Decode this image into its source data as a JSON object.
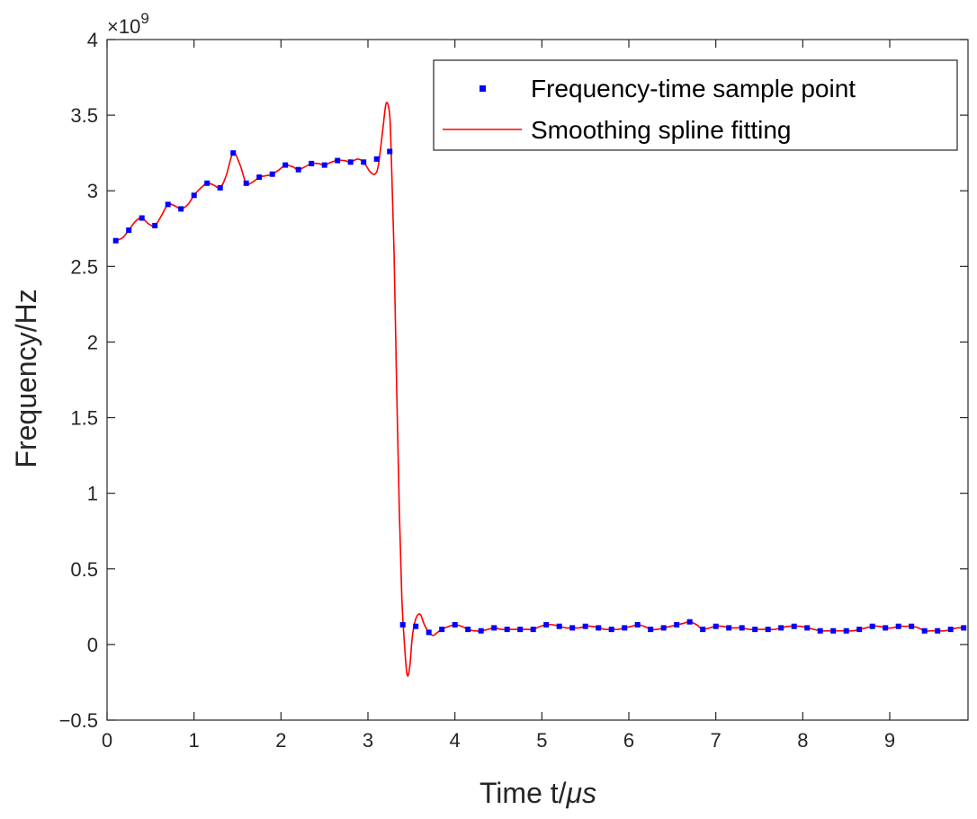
{
  "chart_data": {
    "type": "line",
    "xlabel": "Time t/",
    "xlabel_unit": "μs",
    "ylabel": "Frequency/Hz",
    "y_exponent_prefix": "×10",
    "y_exponent_power": "9",
    "xlim": [
      0,
      9.9
    ],
    "ylim": [
      -0.5,
      4
    ],
    "xticks": [
      0,
      1,
      2,
      3,
      4,
      5,
      6,
      7,
      8,
      9
    ],
    "xtick_labels": [
      "0",
      "1",
      "2",
      "3",
      "4",
      "5",
      "6",
      "7",
      "8",
      "9"
    ],
    "yticks": [
      -0.5,
      0,
      0.5,
      1,
      1.5,
      2,
      2.5,
      3,
      3.5,
      4
    ],
    "ytick_labels": [
      "−0.5",
      "0",
      "0.5",
      "1",
      "1.5",
      "2",
      "2.5",
      "3",
      "3.5",
      "4"
    ],
    "grid": false,
    "legend_position": "top-right",
    "colors": {
      "samples": "#0000ff",
      "fit": "#ff0000",
      "axes": "#262626"
    },
    "series": [
      {
        "name": "Frequency-time sample point",
        "style": "markers",
        "points": [
          [
            0.1,
            2.67
          ],
          [
            0.25,
            2.74
          ],
          [
            0.4,
            2.82
          ],
          [
            0.55,
            2.77
          ],
          [
            0.7,
            2.91
          ],
          [
            0.85,
            2.88
          ],
          [
            1.0,
            2.97
          ],
          [
            1.15,
            3.05
          ],
          [
            1.3,
            3.02
          ],
          [
            1.45,
            3.25
          ],
          [
            1.6,
            3.05
          ],
          [
            1.75,
            3.09
          ],
          [
            1.9,
            3.11
          ],
          [
            2.05,
            3.17
          ],
          [
            2.2,
            3.14
          ],
          [
            2.35,
            3.18
          ],
          [
            2.5,
            3.17
          ],
          [
            2.65,
            3.2
          ],
          [
            2.8,
            3.19
          ],
          [
            2.95,
            3.19
          ],
          [
            3.1,
            3.21
          ],
          [
            3.25,
            3.26
          ],
          [
            3.4,
            0.13
          ],
          [
            3.55,
            0.12
          ],
          [
            3.7,
            0.08
          ],
          [
            3.85,
            0.1
          ],
          [
            4.0,
            0.13
          ],
          [
            4.15,
            0.1
          ],
          [
            4.3,
            0.09
          ],
          [
            4.45,
            0.11
          ],
          [
            4.6,
            0.1
          ],
          [
            4.75,
            0.1
          ],
          [
            4.9,
            0.1
          ],
          [
            5.05,
            0.13
          ],
          [
            5.2,
            0.12
          ],
          [
            5.35,
            0.11
          ],
          [
            5.5,
            0.12
          ],
          [
            5.65,
            0.11
          ],
          [
            5.8,
            0.1
          ],
          [
            5.95,
            0.11
          ],
          [
            6.1,
            0.13
          ],
          [
            6.25,
            0.1
          ],
          [
            6.4,
            0.11
          ],
          [
            6.55,
            0.13
          ],
          [
            6.7,
            0.15
          ],
          [
            6.85,
            0.1
          ],
          [
            7.0,
            0.12
          ],
          [
            7.15,
            0.11
          ],
          [
            7.3,
            0.11
          ],
          [
            7.45,
            0.1
          ],
          [
            7.6,
            0.1
          ],
          [
            7.75,
            0.11
          ],
          [
            7.9,
            0.12
          ],
          [
            8.05,
            0.11
          ],
          [
            8.2,
            0.09
          ],
          [
            8.35,
            0.09
          ],
          [
            8.5,
            0.09
          ],
          [
            8.65,
            0.1
          ],
          [
            8.8,
            0.12
          ],
          [
            8.95,
            0.11
          ],
          [
            9.1,
            0.12
          ],
          [
            9.25,
            0.12
          ],
          [
            9.4,
            0.09
          ],
          [
            9.55,
            0.09
          ],
          [
            9.7,
            0.1
          ],
          [
            9.85,
            0.11
          ]
        ]
      },
      {
        "name": "Smoothing spline fitting",
        "style": "line",
        "points": [
          [
            0.1,
            2.67
          ],
          [
            0.18,
            2.69
          ],
          [
            0.25,
            2.74
          ],
          [
            0.33,
            2.8
          ],
          [
            0.4,
            2.82
          ],
          [
            0.48,
            2.78
          ],
          [
            0.55,
            2.77
          ],
          [
            0.63,
            2.84
          ],
          [
            0.7,
            2.91
          ],
          [
            0.78,
            2.9
          ],
          [
            0.85,
            2.88
          ],
          [
            0.93,
            2.91
          ],
          [
            1.0,
            2.97
          ],
          [
            1.08,
            3.02
          ],
          [
            1.15,
            3.05
          ],
          [
            1.22,
            3.04
          ],
          [
            1.3,
            3.02
          ],
          [
            1.37,
            3.1
          ],
          [
            1.45,
            3.25
          ],
          [
            1.53,
            3.17
          ],
          [
            1.6,
            3.05
          ],
          [
            1.68,
            3.06
          ],
          [
            1.75,
            3.09
          ],
          [
            1.83,
            3.1
          ],
          [
            1.9,
            3.11
          ],
          [
            1.98,
            3.14
          ],
          [
            2.05,
            3.17
          ],
          [
            2.13,
            3.16
          ],
          [
            2.2,
            3.14
          ],
          [
            2.28,
            3.16
          ],
          [
            2.35,
            3.18
          ],
          [
            2.43,
            3.18
          ],
          [
            2.5,
            3.17
          ],
          [
            2.58,
            3.19
          ],
          [
            2.65,
            3.2
          ],
          [
            2.73,
            3.2
          ],
          [
            2.8,
            3.19
          ],
          [
            2.88,
            3.21
          ],
          [
            2.95,
            3.19
          ],
          [
            3.02,
            3.13
          ],
          [
            3.08,
            3.11
          ],
          [
            3.12,
            3.17
          ],
          [
            3.17,
            3.4
          ],
          [
            3.21,
            3.58
          ],
          [
            3.25,
            3.5
          ],
          [
            3.27,
            3.2
          ],
          [
            3.3,
            2.6
          ],
          [
            3.33,
            1.7
          ],
          [
            3.36,
            0.9
          ],
          [
            3.39,
            0.3
          ],
          [
            3.42,
            0.0
          ],
          [
            3.45,
            -0.2
          ],
          [
            3.48,
            -0.15
          ],
          [
            3.51,
            0.05
          ],
          [
            3.55,
            0.17
          ],
          [
            3.6,
            0.2
          ],
          [
            3.65,
            0.13
          ],
          [
            3.7,
            0.08
          ],
          [
            3.75,
            0.06
          ],
          [
            3.8,
            0.08
          ],
          [
            3.85,
            0.1
          ],
          [
            3.93,
            0.12
          ],
          [
            4.0,
            0.13
          ],
          [
            4.08,
            0.12
          ],
          [
            4.15,
            0.1
          ],
          [
            4.22,
            0.09
          ],
          [
            4.3,
            0.09
          ],
          [
            4.38,
            0.1
          ],
          [
            4.45,
            0.11
          ],
          [
            4.53,
            0.1
          ],
          [
            4.6,
            0.1
          ],
          [
            4.68,
            0.1
          ],
          [
            4.75,
            0.1
          ],
          [
            4.83,
            0.1
          ],
          [
            4.9,
            0.1
          ],
          [
            4.98,
            0.12
          ],
          [
            5.05,
            0.13
          ],
          [
            5.13,
            0.13
          ],
          [
            5.2,
            0.12
          ],
          [
            5.28,
            0.11
          ],
          [
            5.35,
            0.11
          ],
          [
            5.43,
            0.11
          ],
          [
            5.5,
            0.12
          ],
          [
            5.58,
            0.12
          ],
          [
            5.65,
            0.11
          ],
          [
            5.73,
            0.1
          ],
          [
            5.8,
            0.1
          ],
          [
            5.88,
            0.1
          ],
          [
            5.95,
            0.11
          ],
          [
            6.03,
            0.12
          ],
          [
            6.1,
            0.13
          ],
          [
            6.18,
            0.12
          ],
          [
            6.25,
            0.1
          ],
          [
            6.33,
            0.1
          ],
          [
            6.4,
            0.11
          ],
          [
            6.48,
            0.12
          ],
          [
            6.55,
            0.13
          ],
          [
            6.63,
            0.14
          ],
          [
            6.7,
            0.15
          ],
          [
            6.78,
            0.13
          ],
          [
            6.85,
            0.1
          ],
          [
            6.93,
            0.11
          ],
          [
            7.0,
            0.12
          ],
          [
            7.08,
            0.12
          ],
          [
            7.15,
            0.11
          ],
          [
            7.23,
            0.11
          ],
          [
            7.3,
            0.11
          ],
          [
            7.38,
            0.1
          ],
          [
            7.45,
            0.1
          ],
          [
            7.53,
            0.1
          ],
          [
            7.6,
            0.1
          ],
          [
            7.68,
            0.1
          ],
          [
            7.75,
            0.11
          ],
          [
            7.83,
            0.12
          ],
          [
            7.9,
            0.12
          ],
          [
            7.98,
            0.12
          ],
          [
            8.05,
            0.11
          ],
          [
            8.13,
            0.1
          ],
          [
            8.2,
            0.09
          ],
          [
            8.28,
            0.09
          ],
          [
            8.35,
            0.09
          ],
          [
            8.43,
            0.09
          ],
          [
            8.5,
            0.09
          ],
          [
            8.58,
            0.09
          ],
          [
            8.65,
            0.1
          ],
          [
            8.73,
            0.11
          ],
          [
            8.8,
            0.12
          ],
          [
            8.88,
            0.12
          ],
          [
            8.95,
            0.11
          ],
          [
            9.03,
            0.11
          ],
          [
            9.1,
            0.12
          ],
          [
            9.18,
            0.12
          ],
          [
            9.25,
            0.12
          ],
          [
            9.33,
            0.11
          ],
          [
            9.4,
            0.09
          ],
          [
            9.48,
            0.09
          ],
          [
            9.55,
            0.09
          ],
          [
            9.63,
            0.09
          ],
          [
            9.7,
            0.1
          ],
          [
            9.78,
            0.11
          ],
          [
            9.85,
            0.11
          ]
        ]
      }
    ]
  }
}
